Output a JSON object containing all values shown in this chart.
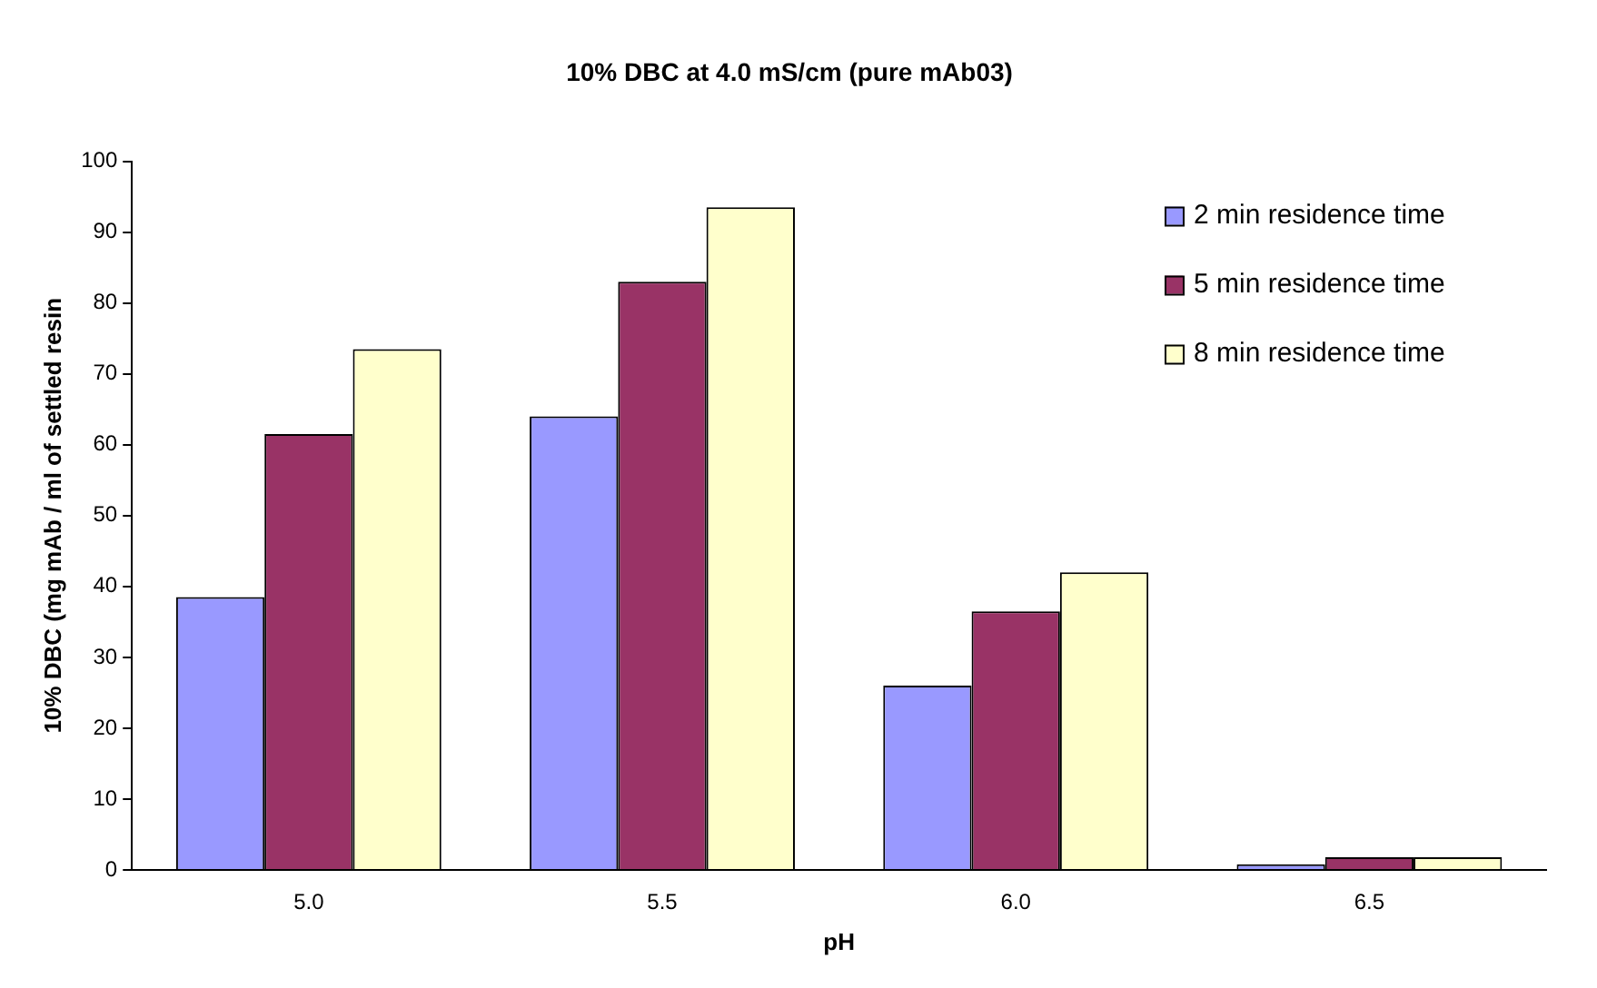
{
  "chart_data": {
    "type": "bar",
    "title": "10% DBC at 4.0 mS/cm (pure mAb03)",
    "xlabel": "pH",
    "ylabel": "10% DBC (mg mAb / ml of settled resin",
    "categories": [
      "5.0",
      "5.5",
      "6.0",
      "6.5"
    ],
    "series": [
      {
        "name": "2 min residence time",
        "color": "#9999ff",
        "values": [
          38.5,
          64,
          26,
          0.8
        ]
      },
      {
        "name": "5 min residence time",
        "color": "#993366",
        "values": [
          61.5,
          83,
          36.5,
          1.8
        ]
      },
      {
        "name": "8 min residence time",
        "color": "#ffffcc",
        "values": [
          73.5,
          93.5,
          42,
          1.8
        ]
      }
    ],
    "ylim": [
      0,
      100
    ],
    "yticks": [
      0,
      10,
      20,
      30,
      40,
      50,
      60,
      70,
      80,
      90,
      100
    ],
    "grid": false,
    "legend": "top right"
  }
}
